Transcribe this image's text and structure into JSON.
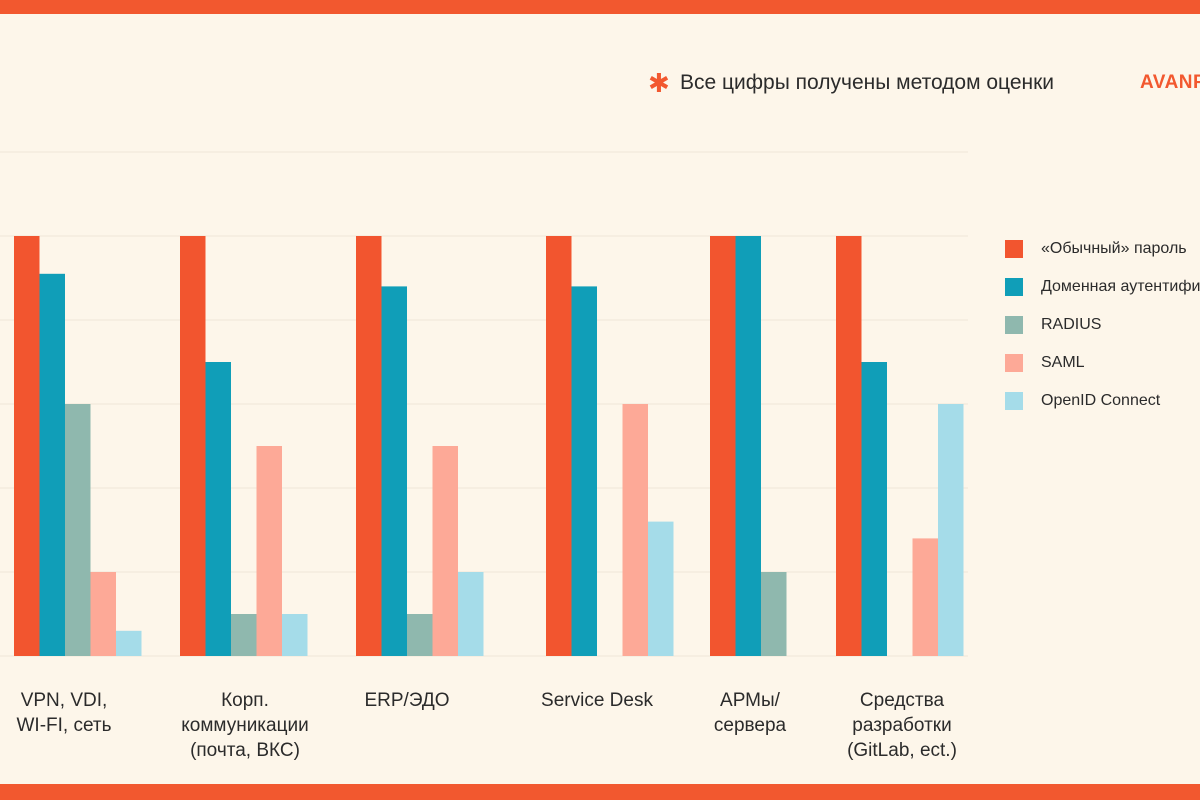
{
  "note": {
    "icon": "asterisk-icon",
    "text": "Все цифры получены методом оценки"
  },
  "logo": {
    "text": "AVANPOST"
  },
  "colors": {
    "background": "#fdf6ea",
    "accent": "#f2582f",
    "grid": "#efe6d8",
    "series": [
      "#f2552f",
      "#109eb8",
      "#8fb8ae",
      "#fda997",
      "#a5dce9"
    ]
  },
  "chart_data": {
    "type": "bar",
    "categories": [
      "VPN, VDI,\nWI-FI, сеть",
      "Корп.\nкоммуникации\n(почта, ВКС)",
      "ERP/ЭДО",
      "Service Desk",
      "АРМы/\nсервера",
      "Средства\nразработки\n(GitLab, ect.)"
    ],
    "series": [
      {
        "name": "«Обычный» пароль",
        "values": [
          100,
          100,
          100,
          100,
          100,
          100
        ]
      },
      {
        "name": "Доменная аутентификация",
        "values": [
          91,
          70,
          88,
          88,
          100,
          70
        ]
      },
      {
        "name": "RADIUS",
        "values": [
          60,
          10,
          10,
          0,
          20,
          0
        ]
      },
      {
        "name": "SAML",
        "values": [
          20,
          50,
          50,
          60,
          0,
          28
        ]
      },
      {
        "name": "OpenID Connect",
        "values": [
          6,
          10,
          20,
          32,
          0,
          60
        ]
      }
    ],
    "ylim": [
      0,
      120
    ],
    "grid": true,
    "legend_position": "right"
  }
}
